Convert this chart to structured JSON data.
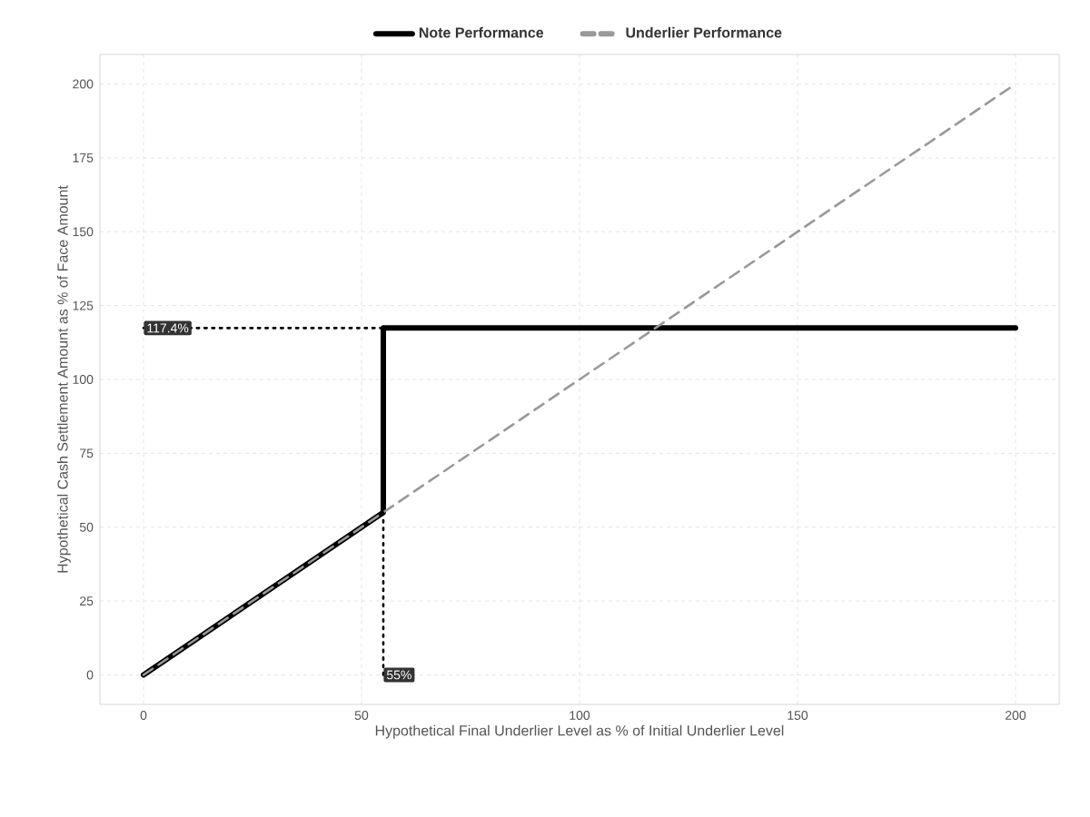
{
  "chart_data": {
    "type": "line",
    "xlabel": "Hypothetical Final Underlier Level as % of Initial Underlier Level",
    "ylabel": "Hypothetical Cash Settlement Amount as % of Face Amount",
    "xlim": [
      -10,
      210
    ],
    "ylim": [
      -10,
      210
    ],
    "xticks": [
      0,
      50,
      100,
      150,
      200
    ],
    "yticks": [
      0,
      25,
      50,
      75,
      100,
      125,
      150,
      175,
      200
    ],
    "grid": true,
    "legend": "top",
    "marker": "none",
    "series": [
      {
        "name": "Note Performance",
        "color": "#000000",
        "line_style": "solid",
        "x": [
          0,
          55,
          55,
          200
        ],
        "values": [
          0,
          55,
          117.4,
          117.4
        ]
      },
      {
        "name": "Underlier Performance",
        "color": "#999999",
        "line_style": "dashed",
        "x": [
          0,
          200
        ],
        "values": [
          0,
          200
        ]
      },
      {
        "color": "#000000",
        "line_style": "dotted",
        "x": [
          0,
          55
        ],
        "values": [
          117.4,
          117.4
        ]
      },
      {
        "color": "#000000",
        "line_style": "dotted",
        "x": [
          55,
          55
        ],
        "values": [
          0,
          55
        ]
      }
    ],
    "annotations": [
      {
        "text": "117.4%",
        "x": 0,
        "y": 117.4
      },
      {
        "text": "55%",
        "x": 55,
        "y": 0
      }
    ]
  }
}
